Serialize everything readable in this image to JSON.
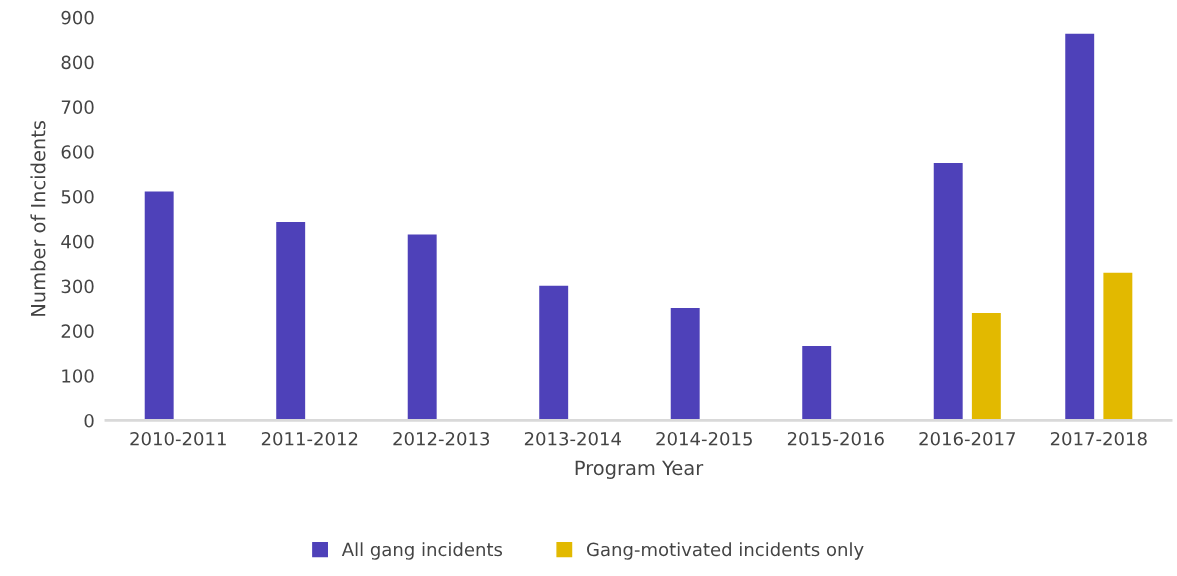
{
  "chart_data": {
    "type": "bar",
    "xlabel": "Program Year",
    "ylabel": "Number of Incidents",
    "categories": [
      "2010-2011",
      "2011-2012",
      "2012-2013",
      "2013-2014",
      "2014-2015",
      "2015-2016",
      "2016-2017",
      "2017-2018"
    ],
    "series": [
      {
        "name": "All gang incidents",
        "color": "#4e41b9",
        "values": [
          511,
          443,
          415,
          301,
          251,
          166,
          575,
          863
        ]
      },
      {
        "name": "Gang-motivated incidents only",
        "color": "#e2b900",
        "values": [
          null,
          null,
          null,
          null,
          null,
          null,
          240,
          330
        ]
      }
    ],
    "ylim": [
      0,
      900
    ],
    "yticks": [
      0,
      100,
      200,
      300,
      400,
      500,
      600,
      700,
      800,
      900
    ],
    "grid": false,
    "legend": "bottom"
  }
}
